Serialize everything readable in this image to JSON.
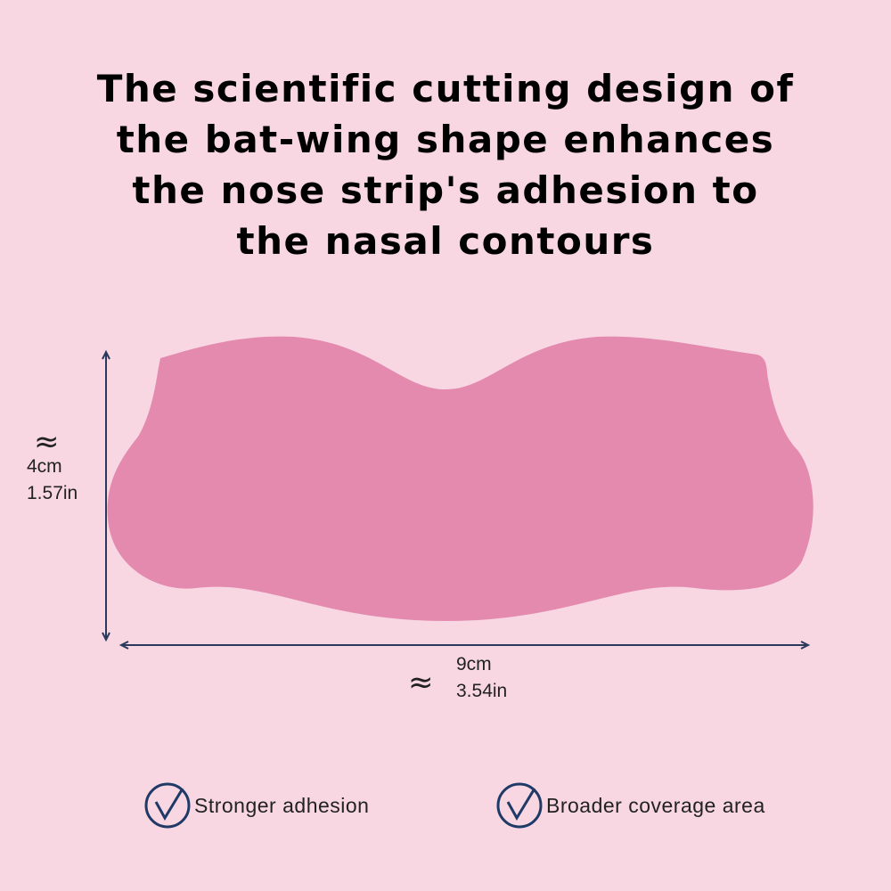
{
  "title": [
    "The scientific cutting design of",
    "the bat-wing shape enhances",
    "the nose strip's adhesion to",
    "the nasal contours"
  ],
  "height": {
    "symbol": "≈",
    "metric": "4cm",
    "imperial": "1.57in"
  },
  "width": {
    "symbol": "≈",
    "metric": "9cm",
    "imperial": "3.54in"
  },
  "features": [
    "Stronger adhesion",
    "Broader coverage area"
  ]
}
